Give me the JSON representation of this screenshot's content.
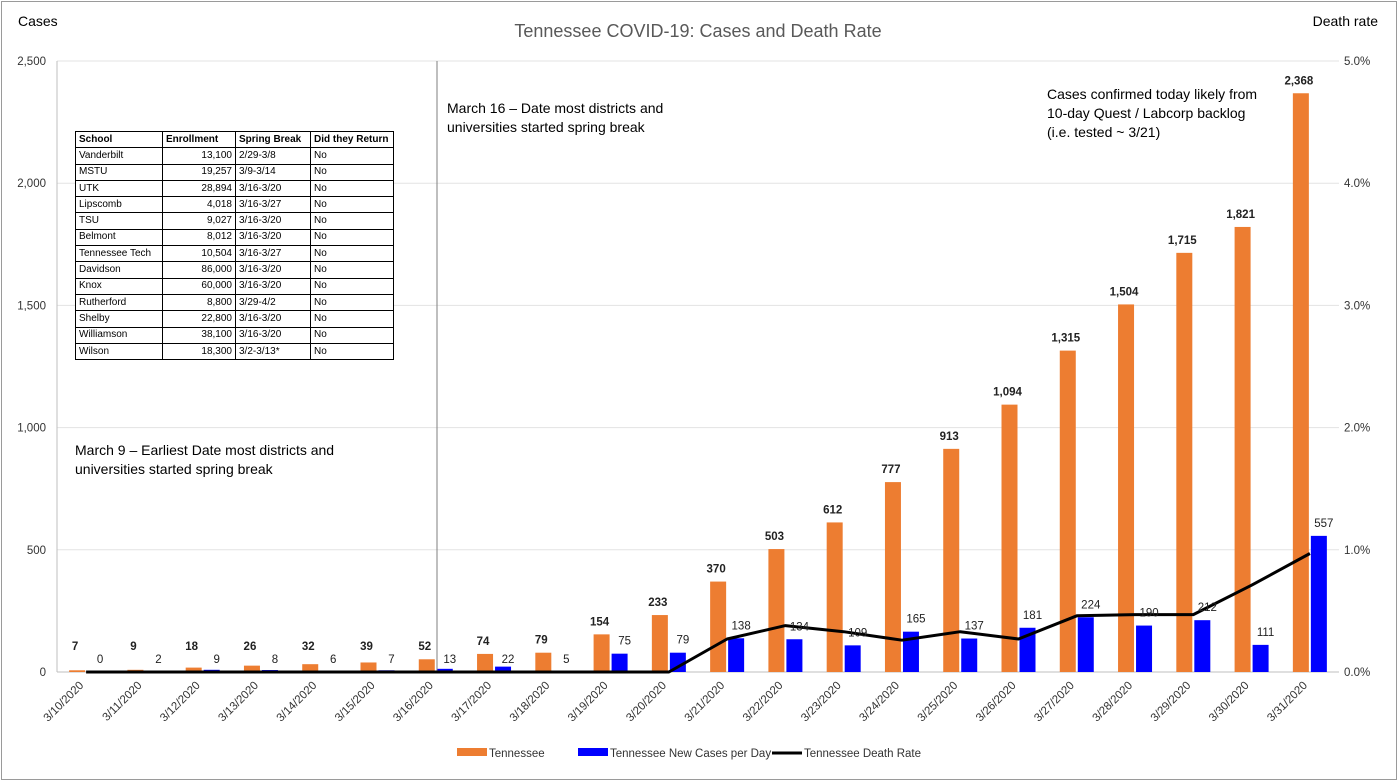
{
  "chart_data": {
    "type": "bar",
    "title": "Tennessee COVID-19: Cases and Death Rate",
    "ylabel": "Cases",
    "y2label": "Death rate",
    "ylim": [
      0,
      2500
    ],
    "y2lim": [
      0,
      5.0
    ],
    "yticks": [
      "0",
      "500",
      "1,000",
      "1,500",
      "2,000",
      "2,500"
    ],
    "y2ticks": [
      "0.0%",
      "1.0%",
      "2.0%",
      "3.0%",
      "4.0%",
      "5.0%"
    ],
    "categories": [
      "3/10/2020",
      "3/11/2020",
      "3/12/2020",
      "3/13/2020",
      "3/14/2020",
      "3/15/2020",
      "3/16/2020",
      "3/17/2020",
      "3/18/2020",
      "3/19/2020",
      "3/20/2020",
      "3/21/2020",
      "3/22/2020",
      "3/23/2020",
      "3/24/2020",
      "3/25/2020",
      "3/26/2020",
      "3/27/2020",
      "3/28/2020",
      "3/29/2020",
      "3/30/2020",
      "3/31/2020"
    ],
    "series": [
      {
        "name": "Tennessee",
        "type": "bar",
        "color": "#ED7D31",
        "values": [
          7,
          9,
          18,
          26,
          32,
          39,
          52,
          74,
          79,
          154,
          233,
          370,
          503,
          612,
          777,
          913,
          1094,
          1315,
          1504,
          1715,
          1821,
          2368
        ],
        "labels": [
          "7",
          "9",
          "18",
          "26",
          "32",
          "39",
          "52",
          "74",
          "79",
          "154",
          "233",
          "370",
          "503",
          "612",
          "777",
          "913",
          "1,094",
          "1,315",
          "1,504",
          "1,715",
          "1,821",
          "2,368"
        ]
      },
      {
        "name": "Tennessee New Cases per Day",
        "type": "bar",
        "color": "#0000FF",
        "values": [
          0,
          2,
          9,
          8,
          6,
          7,
          13,
          22,
          5,
          75,
          79,
          138,
          134,
          109,
          165,
          137,
          181,
          224,
          190,
          212,
          111,
          557
        ],
        "labels": [
          "0",
          "2",
          "9",
          "8",
          "6",
          "7",
          "13",
          "22",
          "5",
          "75",
          "79",
          "138",
          "134",
          "109",
          "165",
          "137",
          "181",
          "224",
          "190",
          "212",
          "111",
          "557"
        ]
      },
      {
        "name": "Tennessee Death Rate",
        "type": "line",
        "axis": "right",
        "color": "#000000",
        "values": [
          0,
          0,
          0,
          0,
          0,
          0,
          0,
          0,
          0,
          0,
          0,
          0.27,
          0.38,
          0.33,
          0.26,
          0.33,
          0.27,
          0.46,
          0.47,
          0.47,
          0.71,
          0.97
        ]
      }
    ],
    "annotations": [
      {
        "lines": [
          "March 9 – Earliest Date most districts and",
          "universities started spring break"
        ]
      },
      {
        "lines": [
          "March 16 – Date most districts and",
          "universities started spring break"
        ]
      },
      {
        "lines": [
          "Cases confirmed today likely from",
          "10-day Quest / Labcorp backlog",
          "(i.e. tested ~ 3/21)"
        ]
      }
    ],
    "legend_position": "bottom",
    "grid": true
  },
  "school_table": {
    "headers": [
      "School",
      "Enrollment",
      "Spring Break",
      "Did they Return"
    ],
    "rows": [
      [
        "Vanderbilt",
        "13,100",
        "2/29-3/8",
        "No"
      ],
      [
        "MSTU",
        "19,257",
        "3/9-3/14",
        "No"
      ],
      [
        "UTK",
        "28,894",
        "3/16-3/20",
        "No"
      ],
      [
        "Lipscomb",
        "4,018",
        "3/16-3/27",
        "No"
      ],
      [
        "TSU",
        "9,027",
        "3/16-3/20",
        "No"
      ],
      [
        "Belmont",
        "8,012",
        "3/16-3/20",
        "No"
      ],
      [
        "Tennessee Tech",
        "10,504",
        "3/16-3/27",
        "No"
      ],
      [
        "Davidson",
        "86,000",
        "3/16-3/20",
        "No"
      ],
      [
        "Knox",
        "60,000",
        "3/16-3/20",
        "No"
      ],
      [
        "Rutherford",
        "8,800",
        "3/29-4/2",
        "No"
      ],
      [
        "Shelby",
        "22,800",
        "3/16-3/20",
        "No"
      ],
      [
        "Williamson",
        "38,100",
        "3/16-3/20",
        "No"
      ],
      [
        "Wilson",
        "18,300",
        "3/2-3/13*",
        "No"
      ]
    ]
  }
}
